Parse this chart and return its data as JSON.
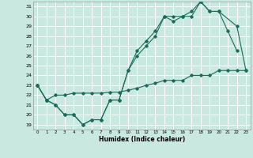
{
  "xlabel": "Humidex (Indice chaleur)",
  "xlim": [
    -0.5,
    23.5
  ],
  "ylim": [
    18.5,
    31.5
  ],
  "yticks": [
    19,
    20,
    21,
    22,
    23,
    24,
    25,
    26,
    27,
    28,
    29,
    30,
    31
  ],
  "xticks": [
    0,
    1,
    2,
    3,
    4,
    5,
    6,
    7,
    8,
    9,
    10,
    11,
    12,
    13,
    14,
    15,
    16,
    17,
    18,
    19,
    20,
    21,
    22,
    23
  ],
  "bg_color": "#c8e8e0",
  "grid_color": "#ffffff",
  "line_color": "#1a6b5a",
  "line1_x": [
    0,
    1,
    2,
    3,
    4,
    5,
    6,
    7,
    8,
    9,
    10,
    11,
    12,
    13,
    14,
    15,
    16,
    17,
    18,
    19,
    20,
    21,
    22
  ],
  "line1_y": [
    23.0,
    21.5,
    21.0,
    20.0,
    20.0,
    19.0,
    19.5,
    19.5,
    21.5,
    21.5,
    24.5,
    26.0,
    27.0,
    28.0,
    30.0,
    29.5,
    30.0,
    30.0,
    31.5,
    30.5,
    30.5,
    28.5,
    26.5
  ],
  "line2_x": [
    0,
    1,
    2,
    3,
    4,
    5,
    6,
    7,
    8,
    9,
    10,
    11,
    12,
    13,
    14,
    15,
    16,
    17,
    18,
    19,
    20,
    22,
    23
  ],
  "line2_y": [
    23.0,
    21.5,
    21.0,
    20.0,
    20.0,
    19.0,
    19.5,
    19.5,
    21.5,
    21.5,
    24.5,
    26.5,
    27.5,
    28.5,
    30.0,
    30.0,
    30.0,
    30.5,
    31.5,
    30.5,
    30.5,
    29.0,
    24.5
  ],
  "line3_x": [
    0,
    1,
    2,
    3,
    4,
    5,
    6,
    7,
    8,
    9,
    10,
    11,
    12,
    13,
    14,
    15,
    16,
    17,
    18,
    19,
    20,
    21,
    22,
    23
  ],
  "line3_y": [
    23.0,
    21.5,
    22.0,
    22.0,
    22.2,
    22.2,
    22.2,
    22.2,
    22.3,
    22.3,
    22.5,
    22.7,
    23.0,
    23.2,
    23.5,
    23.5,
    23.5,
    24.0,
    24.0,
    24.0,
    24.5,
    24.5,
    24.5,
    24.5
  ]
}
